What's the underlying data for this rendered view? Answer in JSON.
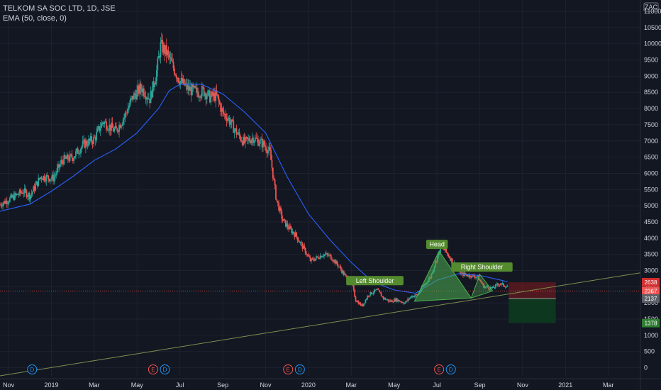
{
  "header": {
    "title": "TELKOM SA SOC LTD, 1D, JSE",
    "indicator": "EMA (50, close, 0)"
  },
  "currency_label": "ZAC",
  "colors": {
    "background": "#131722",
    "up_candle": "#26a69a",
    "down_candle": "#ef5350",
    "ema_line": "#2962ff",
    "trendline": "#7d8f4e",
    "pattern_fill": "#4caf50",
    "label_bg": "#558b2f",
    "stop_zone": "#5c1a1f",
    "target_zone": "#0d3b1e",
    "grid": "#1e2230"
  },
  "chart_data": {
    "type": "candlestick",
    "y_axis": {
      "ticks": [
        0,
        500,
        1000,
        1500,
        2000,
        2500,
        3000,
        3500,
        4000,
        4500,
        5000,
        5500,
        6000,
        6500,
        7000,
        7500,
        8000,
        8500,
        9000,
        9500,
        10000,
        10500,
        11000
      ],
      "range": [
        -250,
        11350
      ]
    },
    "x_axis": {
      "labels": [
        {
          "t": 0,
          "label": "Nov"
        },
        {
          "t": 2,
          "label": "2019"
        },
        {
          "t": 4,
          "label": "Mar"
        },
        {
          "t": 6,
          "label": "May"
        },
        {
          "t": 8,
          "label": "Jul"
        },
        {
          "t": 10,
          "label": "Sep"
        },
        {
          "t": 12,
          "label": "Nov"
        },
        {
          "t": 14,
          "label": "2020"
        },
        {
          "t": 16,
          "label": "Mar"
        },
        {
          "t": 18,
          "label": "May"
        },
        {
          "t": 20,
          "label": "Jul"
        },
        {
          "t": 22,
          "label": "Sep"
        },
        {
          "t": 24,
          "label": "Nov"
        },
        {
          "t": 26,
          "label": "2021"
        },
        {
          "t": 28,
          "label": "Mar"
        }
      ],
      "range": [
        -0.4,
        29.5
      ]
    },
    "price_path": [
      [
        -0.9,
        4850
      ],
      [
        0.7,
        5450
      ],
      [
        1.0,
        5300
      ],
      [
        1.5,
        5900
      ],
      [
        2.1,
        5850
      ],
      [
        2.5,
        6400
      ],
      [
        3.0,
        6500
      ],
      [
        3.5,
        6900
      ],
      [
        4.0,
        7050
      ],
      [
        4.4,
        7600
      ],
      [
        5.0,
        7300
      ],
      [
        5.4,
        7750
      ],
      [
        5.8,
        8350
      ],
      [
        6.2,
        8650
      ],
      [
        6.6,
        8300
      ],
      [
        6.9,
        9100
      ],
      [
        7.1,
        9950
      ],
      [
        7.4,
        9700
      ],
      [
        7.7,
        9250
      ],
      [
        8.0,
        8850
      ],
      [
        8.4,
        8600
      ],
      [
        8.8,
        8500
      ],
      [
        9.1,
        8550
      ],
      [
        9.4,
        8350
      ],
      [
        9.7,
        8400
      ],
      [
        10.0,
        7850
      ],
      [
        10.2,
        7750
      ],
      [
        10.6,
        7300
      ],
      [
        11.0,
        6950
      ],
      [
        11.4,
        7100
      ],
      [
        11.9,
        6900
      ],
      [
        12.2,
        6650
      ],
      [
        12.5,
        5200
      ],
      [
        12.8,
        4550
      ],
      [
        13.1,
        4300
      ],
      [
        13.4,
        4100
      ],
      [
        13.8,
        3650
      ],
      [
        14.1,
        3300
      ],
      [
        14.4,
        3400
      ],
      [
        14.7,
        3500
      ],
      [
        15.0,
        3450
      ],
      [
        15.4,
        3150
      ],
      [
        15.8,
        2750
      ],
      [
        16.0,
        2700
      ],
      [
        16.2,
        2100
      ],
      [
        16.5,
        1900
      ],
      [
        16.8,
        2250
      ],
      [
        17.2,
        2400
      ],
      [
        17.5,
        2150
      ],
      [
        17.8,
        2050
      ],
      [
        18.1,
        2100
      ],
      [
        18.5,
        2000
      ],
      [
        18.8,
        2200
      ],
      [
        19.1,
        2250
      ],
      [
        19.4,
        2550
      ],
      [
        19.7,
        2800
      ],
      [
        19.9,
        3200
      ],
      [
        20.2,
        3750
      ],
      [
        20.5,
        3500
      ],
      [
        20.8,
        3200
      ],
      [
        21.1,
        2900
      ],
      [
        21.5,
        2850
      ],
      [
        21.9,
        2800
      ],
      [
        22.2,
        2500
      ],
      [
        22.6,
        2450
      ],
      [
        22.9,
        2600
      ],
      [
        23.3,
        2500
      ]
    ],
    "ema_path": [
      [
        -0.9,
        4750
      ],
      [
        1.0,
        5050
      ],
      [
        2.0,
        5450
      ],
      [
        3.0,
        5900
      ],
      [
        4.0,
        6400
      ],
      [
        5.0,
        6750
      ],
      [
        6.0,
        7250
      ],
      [
        7.0,
        8000
      ],
      [
        7.5,
        8550
      ],
      [
        8.0,
        8750
      ],
      [
        9.0,
        8750
      ],
      [
        10.0,
        8450
      ],
      [
        11.0,
        7900
      ],
      [
        12.0,
        7250
      ],
      [
        13.0,
        5900
      ],
      [
        14.0,
        4750
      ],
      [
        15.0,
        3950
      ],
      [
        16.0,
        3250
      ],
      [
        17.0,
        2650
      ],
      [
        18.0,
        2400
      ],
      [
        19.0,
        2300
      ],
      [
        20.0,
        2700
      ],
      [
        21.0,
        2900
      ],
      [
        22.0,
        2850
      ],
      [
        23.0,
        2700
      ],
      [
        23.3,
        2650
      ]
    ],
    "trendline": {
      "from": [
        -0.4,
        -250
      ],
      "to": [
        29.5,
        2930
      ]
    },
    "head_and_shoulders": {
      "labels": [
        "Left Shoulder",
        "Head",
        "Right Shoulder"
      ],
      "triangle_1": [
        [
          18.95,
          2050
        ],
        [
          20.1,
          3600
        ],
        [
          21.6,
          2150
        ]
      ],
      "triangle_2": [
        [
          21.6,
          2150
        ],
        [
          22.0,
          2880
        ],
        [
          22.6,
          2370
        ]
      ],
      "left_shoulder_anchor": [
        17.1,
        2480
      ],
      "head_anchor": [
        20.0,
        3600
      ],
      "right_shoulder_anchor": [
        22.1,
        2900
      ]
    },
    "position": {
      "entry": 2137,
      "stop": 2638,
      "target": 1378,
      "current": 2367,
      "t_start": 23.35,
      "t_end": 25.55,
      "dotted_level": 2367
    },
    "price_tags": [
      "2638",
      "2367",
      "2137",
      "1378"
    ],
    "event_markers": [
      {
        "t": 1.1,
        "label": "D",
        "kind": "dividend"
      },
      {
        "t": 6.75,
        "label": "E",
        "kind": "earnings"
      },
      {
        "t": 7.3,
        "label": "D",
        "kind": "dividend"
      },
      {
        "t": 13.05,
        "label": "E",
        "kind": "earnings"
      },
      {
        "t": 13.6,
        "label": "D",
        "kind": "dividend"
      },
      {
        "t": 20.1,
        "label": "E",
        "kind": "earnings"
      },
      {
        "t": 20.65,
        "label": "D",
        "kind": "dividend"
      }
    ]
  }
}
